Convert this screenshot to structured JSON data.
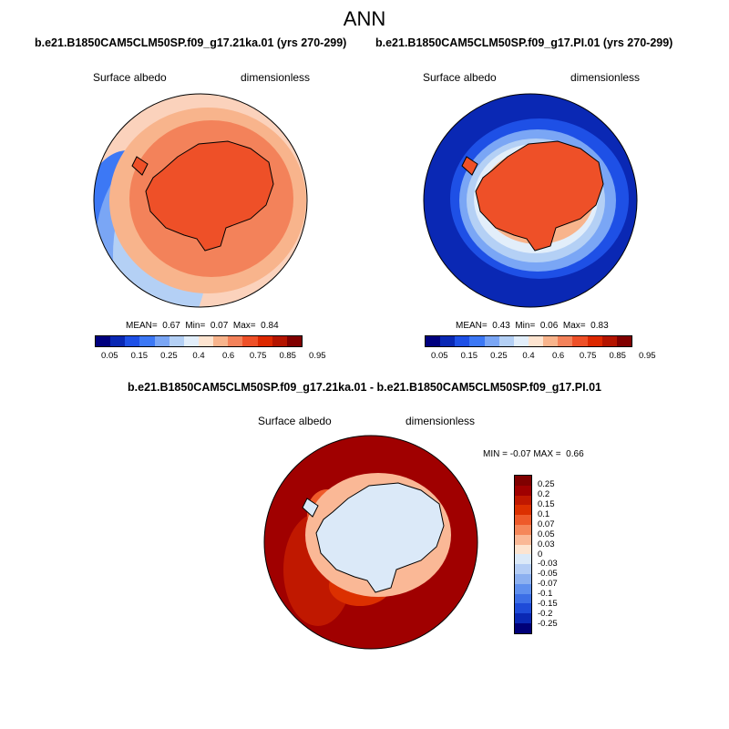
{
  "title": "ANN",
  "panels": [
    {
      "case": "b.e21.B1850CAM5CLM50SP.f09_g17.21ka.01 (yrs 270-299)",
      "variable": "Surface albedo",
      "units": "dimensionless",
      "mean_label": "MEAN=",
      "mean": "0.67",
      "min_label": "Min=",
      "min": "0.07",
      "max_label": "Max=",
      "max": "0.84"
    },
    {
      "case": "b.e21.B1850CAM5CLM50SP.f09_g17.PI.01 (yrs 270-299)",
      "variable": "Surface albedo",
      "units": "dimensionless",
      "mean_label": "MEAN=",
      "mean": "0.43",
      "min_label": "Min=",
      "min": "0.06",
      "max_label": "Max=",
      "max": "0.83"
    }
  ],
  "diff": {
    "title": "b.e21.B1850CAM5CLM50SP.f09_g17.21ka.01 - b.e21.B1850CAM5CLM50SP.f09_g17.PI.01",
    "variable": "Surface albedo",
    "units": "dimensionless",
    "min_label": "MIN =",
    "min": "-0.07",
    "max_label": "MAX =",
    "max": "0.66"
  },
  "colorbar": {
    "colors": [
      "#00007e",
      "#0a28b4",
      "#1e50e6",
      "#3c78f5",
      "#7aa6f5",
      "#b4d0f5",
      "#e2eefa",
      "#fde4d0",
      "#f8b48c",
      "#f3825a",
      "#ee5028",
      "#dc2800",
      "#b41400",
      "#800000"
    ],
    "labels": [
      "0.05",
      "0.15",
      "0.25",
      "0.4",
      "0.6",
      "0.75",
      "0.85",
      "0.95"
    ]
  },
  "diff_colorbar": {
    "colors": [
      "#800000",
      "#a00000",
      "#c01800",
      "#dc3000",
      "#ee5a2a",
      "#f5875a",
      "#fab896",
      "#fde4d0",
      "#dbe9f8",
      "#b4cdf5",
      "#8cb0f0",
      "#5f8fee",
      "#3c6ee6",
      "#1e4bd8",
      "#0a28b4",
      "#000078"
    ],
    "labels": [
      "0.25",
      "0.2",
      "0.15",
      "0.1",
      "0.07",
      "0.05",
      "0.03",
      "0",
      "-0.03",
      "-0.05",
      "-0.07",
      "-0.1",
      "-0.15",
      "-0.2",
      "-0.25"
    ]
  }
}
